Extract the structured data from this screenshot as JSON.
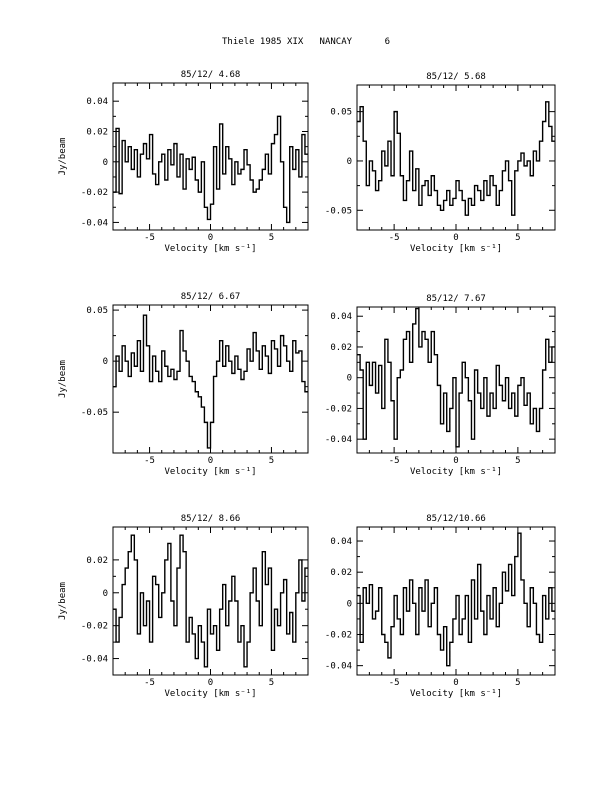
{
  "header": {
    "author": "Thiele 1985 XIX",
    "site": "NANCAY",
    "page": "6"
  },
  "chart_data": [
    {
      "type": "line",
      "title": "85/12/ 4.68",
      "xlabel": "Velocity [km s⁻¹]",
      "ylabel": "Jy/beam",
      "xlim": [
        -8,
        8
      ],
      "ylim": [
        -0.045,
        0.052
      ],
      "xticks": [
        -5,
        0,
        5
      ],
      "yticks": [
        -0.04,
        -0.02,
        0,
        0.02,
        0.04
      ],
      "ytick_labels": [
        "-0.04",
        "-0.02",
        "0",
        "0.02",
        "0.04"
      ],
      "grid": false,
      "series": [
        {
          "x": [
            -8.0,
            -7.75,
            -7.5,
            -7.25,
            -7.0,
            -6.75,
            -6.5,
            -6.25,
            -6.0,
            -5.75,
            -5.5,
            -5.25,
            -5.0,
            -4.75,
            -4.5,
            -4.25,
            -4.0,
            -3.75,
            -3.5,
            -3.25,
            -3.0,
            -2.75,
            -2.5,
            -2.25,
            -2.0,
            -1.75,
            -1.5,
            -1.25,
            -1.0,
            -0.75,
            -0.5,
            -0.25,
            0.0,
            0.25,
            0.5,
            0.75,
            1.0,
            1.25,
            1.5,
            1.75,
            2.0,
            2.25,
            2.5,
            2.75,
            3.0,
            3.25,
            3.5,
            3.75,
            4.0,
            4.25,
            4.5,
            4.75,
            5.0,
            5.25,
            5.5,
            5.75,
            6.0,
            6.25,
            6.5,
            6.75,
            7.0,
            7.25,
            7.5,
            7.75
          ],
          "y": [
            -0.02,
            0.022,
            -0.021,
            0.014,
            0.0,
            0.01,
            -0.005,
            0.008,
            -0.01,
            0.005,
            0.012,
            0.002,
            0.018,
            -0.008,
            -0.015,
            0.0,
            0.005,
            -0.012,
            0.008,
            -0.002,
            0.012,
            -0.01,
            0.005,
            -0.018,
            0.002,
            -0.005,
            0.003,
            -0.012,
            -0.02,
            0.0,
            -0.03,
            -0.038,
            -0.028,
            0.01,
            -0.018,
            0.025,
            -0.008,
            0.01,
            0.002,
            -0.015,
            0.0,
            -0.008,
            -0.005,
            0.008,
            -0.002,
            -0.012,
            -0.02,
            -0.018,
            -0.012,
            -0.005,
            0.005,
            -0.008,
            0.012,
            0.018,
            0.03,
            0.0,
            -0.03,
            -0.04,
            0.01,
            -0.005,
            0.008,
            -0.01,
            0.018,
            0.005
          ]
        }
      ]
    },
    {
      "type": "line",
      "title": "85/12/ 5.68",
      "xlabel": "Velocity [km s⁻¹]",
      "ylabel": "",
      "xlim": [
        -8,
        8
      ],
      "ylim": [
        -0.07,
        0.077
      ],
      "xticks": [
        -5,
        0,
        5
      ],
      "yticks": [
        -0.05,
        0,
        0.05
      ],
      "ytick_labels": [
        "-0.05",
        "0",
        "0.05"
      ],
      "grid": false,
      "series": [
        {
          "x": [
            -8.0,
            -7.75,
            -7.5,
            -7.25,
            -7.0,
            -6.75,
            -6.5,
            -6.25,
            -6.0,
            -5.75,
            -5.5,
            -5.25,
            -5.0,
            -4.75,
            -4.5,
            -4.25,
            -4.0,
            -3.75,
            -3.5,
            -3.25,
            -3.0,
            -2.75,
            -2.5,
            -2.25,
            -2.0,
            -1.75,
            -1.5,
            -1.25,
            -1.0,
            -0.75,
            -0.5,
            -0.25,
            0.0,
            0.25,
            0.5,
            0.75,
            1.0,
            1.25,
            1.5,
            1.75,
            2.0,
            2.25,
            2.5,
            2.75,
            3.0,
            3.25,
            3.5,
            3.75,
            4.0,
            4.25,
            4.5,
            4.75,
            5.0,
            5.25,
            5.5,
            5.75,
            6.0,
            6.25,
            6.5,
            6.75,
            7.0,
            7.25,
            7.5,
            7.75
          ],
          "y": [
            0.04,
            0.055,
            0.02,
            -0.025,
            0.0,
            -0.01,
            -0.03,
            -0.02,
            0.01,
            -0.005,
            0.02,
            -0.015,
            0.05,
            0.028,
            -0.015,
            -0.04,
            -0.02,
            0.01,
            -0.03,
            -0.008,
            -0.045,
            -0.025,
            -0.02,
            -0.035,
            -0.015,
            -0.03,
            -0.045,
            -0.05,
            -0.04,
            -0.03,
            -0.045,
            -0.038,
            -0.02,
            -0.03,
            -0.04,
            -0.055,
            -0.038,
            -0.045,
            -0.025,
            -0.03,
            -0.04,
            -0.02,
            -0.035,
            -0.015,
            -0.025,
            -0.045,
            -0.03,
            -0.01,
            0.0,
            -0.02,
            -0.055,
            -0.01,
            0.0,
            0.008,
            -0.005,
            0.0,
            -0.015,
            0.01,
            0.0,
            0.02,
            0.04,
            0.06,
            0.035,
            0.02
          ]
        }
      ]
    },
    {
      "type": "line",
      "title": "85/12/ 6.67",
      "xlabel": "Velocity [km s⁻¹]",
      "ylabel": "Jy/beam",
      "xlim": [
        -8,
        8
      ],
      "ylim": [
        -0.09,
        0.055
      ],
      "xticks": [
        -5,
        0,
        5
      ],
      "yticks": [
        -0.05,
        0,
        0.05
      ],
      "ytick_labels": [
        "-0.05",
        "0",
        "0.05"
      ],
      "grid": false,
      "series": [
        {
          "x": [
            -8.0,
            -7.75,
            -7.5,
            -7.25,
            -7.0,
            -6.75,
            -6.5,
            -6.25,
            -6.0,
            -5.75,
            -5.5,
            -5.25,
            -5.0,
            -4.75,
            -4.5,
            -4.25,
            -4.0,
            -3.75,
            -3.5,
            -3.25,
            -3.0,
            -2.75,
            -2.5,
            -2.25,
            -2.0,
            -1.75,
            -1.5,
            -1.25,
            -1.0,
            -0.75,
            -0.5,
            -0.25,
            0.0,
            0.25,
            0.5,
            0.75,
            1.0,
            1.25,
            1.5,
            1.75,
            2.0,
            2.25,
            2.5,
            2.75,
            3.0,
            3.25,
            3.5,
            3.75,
            4.0,
            4.25,
            4.5,
            4.75,
            5.0,
            5.25,
            5.5,
            5.75,
            6.0,
            6.25,
            6.5,
            6.75,
            7.0,
            7.25,
            7.5,
            7.75
          ],
          "y": [
            -0.025,
            0.005,
            -0.01,
            0.015,
            0.0,
            -0.015,
            0.008,
            -0.005,
            0.02,
            -0.01,
            0.045,
            0.015,
            -0.02,
            0.005,
            -0.01,
            -0.02,
            0.01,
            -0.005,
            -0.015,
            -0.008,
            -0.018,
            -0.01,
            0.03,
            0.01,
            0.0,
            -0.015,
            -0.02,
            -0.03,
            -0.035,
            -0.045,
            -0.06,
            -0.085,
            -0.06,
            -0.015,
            0.0,
            0.02,
            -0.005,
            0.015,
            0.0,
            -0.012,
            0.005,
            -0.008,
            -0.018,
            -0.01,
            0.012,
            0.0,
            0.028,
            0.01,
            -0.008,
            0.015,
            0.005,
            -0.012,
            0.02,
            0.012,
            -0.005,
            0.025,
            0.015,
            0.0,
            -0.01,
            0.02,
            0.008,
            0.01,
            -0.02,
            -0.03
          ]
        }
      ]
    },
    {
      "type": "line",
      "title": "85/12/ 7.67",
      "xlabel": "Velocity [km s⁻¹]",
      "ylabel": "",
      "xlim": [
        -8,
        8
      ],
      "ylim": [
        -0.049,
        0.046
      ],
      "xticks": [
        -5,
        0,
        5
      ],
      "yticks": [
        -0.04,
        -0.02,
        0,
        0.02,
        0.04
      ],
      "ytick_labels": [
        "-0.04",
        "-0.02",
        "0",
        "0.02",
        "0.04"
      ],
      "grid": false,
      "series": [
        {
          "x": [
            -8.0,
            -7.75,
            -7.5,
            -7.25,
            -7.0,
            -6.75,
            -6.5,
            -6.25,
            -6.0,
            -5.75,
            -5.5,
            -5.25,
            -5.0,
            -4.75,
            -4.5,
            -4.25,
            -4.0,
            -3.75,
            -3.5,
            -3.25,
            -3.0,
            -2.75,
            -2.5,
            -2.25,
            -2.0,
            -1.75,
            -1.5,
            -1.25,
            -1.0,
            -0.75,
            -0.5,
            -0.25,
            0.0,
            0.25,
            0.5,
            0.75,
            1.0,
            1.25,
            1.5,
            1.75,
            2.0,
            2.25,
            2.5,
            2.75,
            3.0,
            3.25,
            3.5,
            3.75,
            4.0,
            4.25,
            4.5,
            4.75,
            5.0,
            5.25,
            5.5,
            5.75,
            6.0,
            6.25,
            6.5,
            6.75,
            7.0,
            7.25,
            7.5,
            7.75
          ],
          "y": [
            0.015,
            0.005,
            -0.04,
            0.01,
            -0.005,
            0.01,
            -0.01,
            0.008,
            -0.02,
            0.025,
            0.01,
            -0.015,
            -0.04,
            0.0,
            0.005,
            0.025,
            0.03,
            0.01,
            0.035,
            0.045,
            0.02,
            0.03,
            0.025,
            0.01,
            0.03,
            0.015,
            -0.005,
            -0.03,
            -0.01,
            -0.035,
            -0.02,
            0.0,
            -0.045,
            -0.01,
            0.01,
            0.0,
            -0.015,
            -0.04,
            0.005,
            -0.01,
            -0.02,
            0.0,
            -0.025,
            -0.01,
            -0.02,
            0.008,
            -0.005,
            -0.015,
            0.0,
            -0.02,
            -0.01,
            -0.025,
            -0.005,
            0.0,
            -0.018,
            -0.01,
            -0.03,
            -0.02,
            -0.035,
            -0.02,
            0.005,
            0.025,
            0.01,
            0.02
          ]
        }
      ]
    },
    {
      "type": "line",
      "title": "85/12/ 8.66",
      "xlabel": "Velocity [km s⁻¹]",
      "ylabel": "Jy/beam",
      "xlim": [
        -8,
        8
      ],
      "ylim": [
        -0.05,
        0.04
      ],
      "xticks": [
        -5,
        0,
        5
      ],
      "yticks": [
        -0.04,
        -0.02,
        0,
        0.02
      ],
      "ytick_labels": [
        "-0.04",
        "-0.02",
        "0",
        "0.02"
      ],
      "grid": false,
      "series": [
        {
          "x": [
            -8.0,
            -7.75,
            -7.5,
            -7.25,
            -7.0,
            -6.75,
            -6.5,
            -6.25,
            -6.0,
            -5.75,
            -5.5,
            -5.25,
            -5.0,
            -4.75,
            -4.5,
            -4.25,
            -4.0,
            -3.75,
            -3.5,
            -3.25,
            -3.0,
            -2.75,
            -2.5,
            -2.25,
            -2.0,
            -1.75,
            -1.5,
            -1.25,
            -1.0,
            -0.75,
            -0.5,
            -0.25,
            0.0,
            0.25,
            0.5,
            0.75,
            1.0,
            1.25,
            1.5,
            1.75,
            2.0,
            2.25,
            2.5,
            2.75,
            3.0,
            3.25,
            3.5,
            3.75,
            4.0,
            4.25,
            4.5,
            4.75,
            5.0,
            5.25,
            5.5,
            5.75,
            6.0,
            6.25,
            6.5,
            6.75,
            7.0,
            7.25,
            7.5,
            7.75
          ],
          "y": [
            -0.01,
            -0.03,
            -0.015,
            0.005,
            0.015,
            0.025,
            0.035,
            0.02,
            -0.025,
            0.0,
            -0.02,
            -0.005,
            -0.03,
            0.01,
            0.005,
            -0.015,
            0.0,
            0.02,
            0.03,
            -0.005,
            -0.02,
            0.015,
            0.035,
            0.025,
            -0.03,
            -0.015,
            -0.025,
            -0.04,
            -0.02,
            -0.03,
            -0.045,
            -0.01,
            -0.025,
            -0.02,
            -0.035,
            -0.01,
            0.005,
            -0.02,
            -0.005,
            0.01,
            -0.005,
            -0.03,
            -0.02,
            -0.045,
            -0.03,
            0.0,
            0.015,
            -0.005,
            -0.02,
            0.025,
            0.005,
            0.015,
            -0.035,
            -0.01,
            -0.02,
            0.0,
            0.008,
            -0.025,
            -0.012,
            -0.03,
            0.0,
            0.02,
            -0.005,
            0.015
          ]
        }
      ]
    },
    {
      "type": "line",
      "title": "85/12/10.66",
      "xlabel": "Velocity [km s⁻¹]",
      "ylabel": "",
      "xlim": [
        -8,
        8
      ],
      "ylim": [
        -0.046,
        0.049
      ],
      "xticks": [
        -5,
        0,
        5
      ],
      "yticks": [
        -0.04,
        -0.02,
        0,
        0.02,
        0.04
      ],
      "ytick_labels": [
        "-0.04",
        "-0.02",
        "0",
        "0.02",
        "0.04"
      ],
      "grid": false,
      "series": [
        {
          "x": [
            -8.0,
            -7.75,
            -7.5,
            -7.25,
            -7.0,
            -6.75,
            -6.5,
            -6.25,
            -6.0,
            -5.75,
            -5.5,
            -5.25,
            -5.0,
            -4.75,
            -4.5,
            -4.25,
            -4.0,
            -3.75,
            -3.5,
            -3.25,
            -3.0,
            -2.75,
            -2.5,
            -2.25,
            -2.0,
            -1.75,
            -1.5,
            -1.25,
            -1.0,
            -0.75,
            -0.5,
            -0.25,
            0.0,
            0.25,
            0.5,
            0.75,
            1.0,
            1.25,
            1.5,
            1.75,
            2.0,
            2.25,
            2.5,
            2.75,
            3.0,
            3.25,
            3.5,
            3.75,
            4.0,
            4.25,
            4.5,
            4.75,
            5.0,
            5.25,
            5.5,
            5.75,
            6.0,
            6.25,
            6.5,
            6.75,
            7.0,
            7.25,
            7.5,
            7.75
          ],
          "y": [
            0.005,
            -0.025,
            0.01,
            0.0,
            0.012,
            -0.01,
            -0.005,
            0.01,
            -0.02,
            -0.025,
            -0.035,
            -0.015,
            0.005,
            -0.01,
            -0.02,
            0.01,
            -0.005,
            0.015,
            0.0,
            -0.02,
            0.01,
            -0.005,
            0.015,
            -0.015,
            0.0,
            0.01,
            -0.02,
            -0.03,
            -0.015,
            -0.04,
            -0.025,
            -0.01,
            0.005,
            -0.02,
            -0.01,
            0.005,
            -0.025,
            0.015,
            -0.01,
            0.025,
            -0.005,
            -0.02,
            0.005,
            -0.01,
            0.01,
            -0.015,
            0.0,
            0.02,
            0.008,
            0.025,
            0.005,
            0.03,
            0.045,
            0.015,
            0.0,
            -0.015,
            0.01,
            0.0,
            -0.02,
            -0.025,
            0.005,
            -0.01,
            0.01,
            -0.005
          ]
        }
      ]
    }
  ]
}
